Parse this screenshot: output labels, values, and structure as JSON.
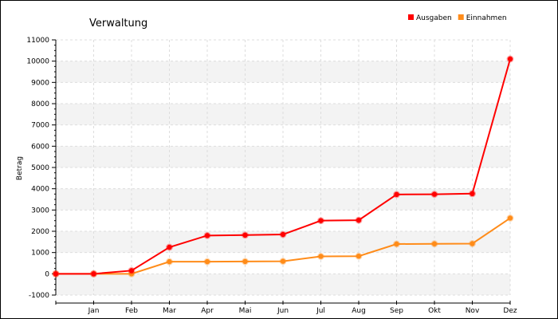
{
  "chart_data": {
    "type": "line",
    "title": "Verwaltung",
    "xlabel": "",
    "ylabel": "Betrag",
    "categories": [
      "",
      "Jan",
      "Feb",
      "Mar",
      "Apr",
      "Mai",
      "Jun",
      "Jul",
      "Aug",
      "Sep",
      "Okt",
      "Nov",
      "Dez"
    ],
    "ylim": [
      -1000,
      11000
    ],
    "yticks": [
      -1000,
      0,
      1000,
      2000,
      3000,
      4000,
      5000,
      6000,
      7000,
      8000,
      9000,
      10000,
      11000
    ],
    "grid": true,
    "legend": "top-right",
    "series": [
      {
        "name": "Ausgaben",
        "color": "#ff0000",
        "values": [
          0,
          0,
          150,
          1250,
          1800,
          1820,
          1850,
          2500,
          2520,
          3730,
          3740,
          3770,
          10100
        ]
      },
      {
        "name": "Einnahmen",
        "color": "#ff8c1a",
        "values": [
          0,
          0,
          0,
          570,
          570,
          580,
          590,
          820,
          830,
          1400,
          1410,
          1420,
          2620
        ]
      }
    ]
  }
}
